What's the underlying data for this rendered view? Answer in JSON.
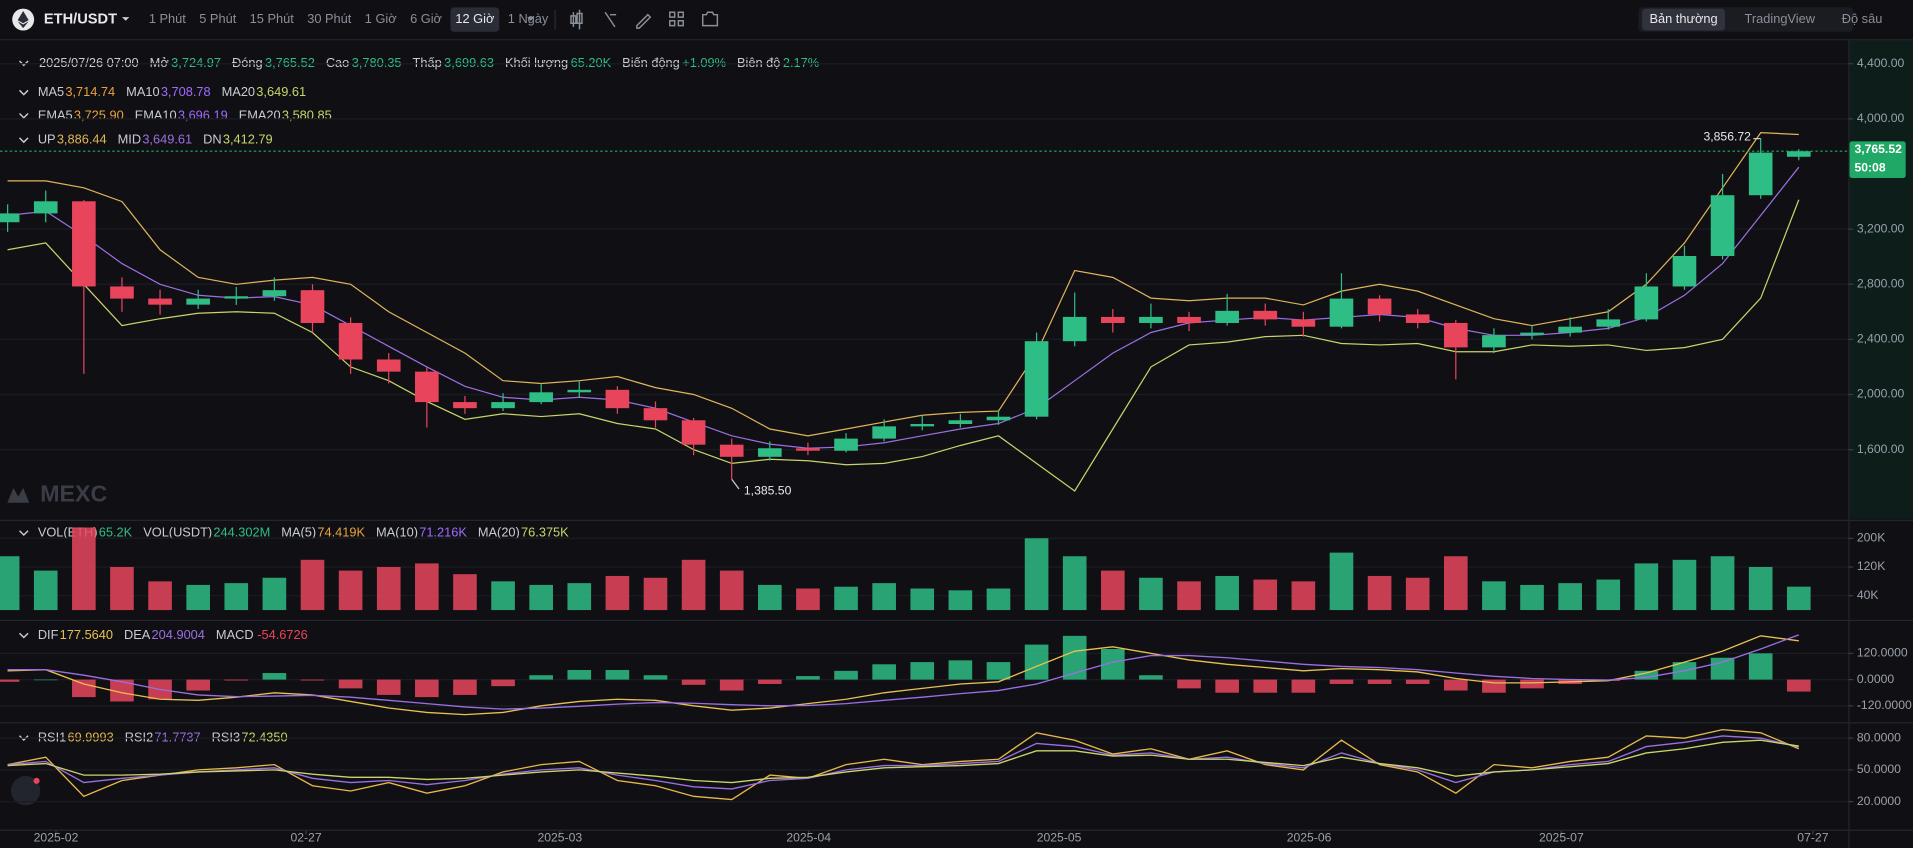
{
  "toolbar": {
    "pair": "ETH/USDT",
    "intervals": [
      "1 Phút",
      "5 Phút",
      "15 Phút",
      "30 Phút",
      "1 Giờ",
      "6 Giờ",
      "12 Giờ",
      "1 Ngày"
    ],
    "active_interval": "12 Giờ",
    "views": [
      "Bản thường",
      "TradingView",
      "Độ sâu"
    ],
    "active_view": "Bản thường"
  },
  "info": {
    "date": "2025/07/26 07:00",
    "value_color": "#2ebd85",
    "fields": [
      {
        "name": "Mở",
        "value": "3,724.97"
      },
      {
        "name": "Đóng",
        "value": "3,765.52"
      },
      {
        "name": "Cao",
        "value": "3,780.35"
      },
      {
        "name": "Thấp",
        "value": "3,699.63"
      },
      {
        "name": "Khối lượng",
        "value": "65.20K"
      },
      {
        "name": "Biến động",
        "value": "+1.09%"
      },
      {
        "name": "Biên độ",
        "value": "2.17%"
      }
    ]
  },
  "legends": {
    "ma": [
      {
        "name": "MA5",
        "value": "3,714.74",
        "color": "#e8a33d"
      },
      {
        "name": "MA10",
        "value": "3,708.78",
        "color": "#a06bff"
      },
      {
        "name": "MA20",
        "value": "3,649.61",
        "color": "#c9d46a"
      }
    ],
    "ema": [
      {
        "name": "EMA5",
        "value": "3,725.90",
        "color": "#e8a33d"
      },
      {
        "name": "EMA10",
        "value": "3,696.19",
        "color": "#a06bff"
      },
      {
        "name": "EMA20",
        "value": "3,580.85",
        "color": "#c9d46a"
      }
    ],
    "vol": [
      {
        "name": "VOL(ETH)",
        "value": "65.2K",
        "color": "#2ebd85"
      },
      {
        "name": "VOL(USDT)",
        "value": "244.302M",
        "color": "#2ebd85"
      },
      {
        "name": "MA(5)",
        "value": "74.419K",
        "color": "#e8a33d"
      },
      {
        "name": "MA(10)",
        "value": "71.216K",
        "color": "#a06bff"
      },
      {
        "name": "MA(20)",
        "value": "76.375K",
        "color": "#c9d46a"
      }
    ]
  },
  "watermark": "MEXC",
  "chart_data": {
    "type": "candlestick",
    "up_color": "#2ebd85",
    "down_color": "#e8455d",
    "grid": true,
    "xlim": [
      -0.2,
      48.3
    ],
    "xticks": [
      {
        "value": 1.27,
        "label": "2025-02"
      },
      {
        "value": 7.83,
        "label": "02-27"
      },
      {
        "value": 14.49,
        "label": "2025-03"
      },
      {
        "value": 21.02,
        "label": "2025-04"
      },
      {
        "value": 27.59,
        "label": "2025-05"
      },
      {
        "value": 34.15,
        "label": "2025-06"
      },
      {
        "value": 40.77,
        "label": "2025-07"
      },
      {
        "value": 47.37,
        "label": "07-27"
      }
    ],
    "main": {
      "ylim": [
        1100,
        4570
      ],
      "yticks": [
        {
          "value": 1600,
          "label": "1,600.00"
        },
        {
          "value": 2000,
          "label": "2,000.00"
        },
        {
          "value": 2400,
          "label": "2,400.00"
        },
        {
          "value": 2800,
          "label": "2,800.00"
        },
        {
          "value": 3200,
          "label": "3,200.00"
        },
        {
          "value": 4000,
          "label": "4,000.00"
        },
        {
          "value": 4400,
          "label": "4,400.00"
        }
      ],
      "candles": [
        [
          3250,
          3380,
          3180,
          3314
        ],
        [
          3314,
          3480,
          3250,
          3402
        ],
        [
          3402,
          3410,
          2150,
          2784
        ],
        [
          2784,
          2850,
          2600,
          2696
        ],
        [
          2696,
          2760,
          2580,
          2652
        ],
        [
          2652,
          2760,
          2620,
          2696
        ],
        [
          2696,
          2780,
          2650,
          2713
        ],
        [
          2713,
          2850,
          2680,
          2757
        ],
        [
          2757,
          2800,
          2450,
          2519
        ],
        [
          2519,
          2560,
          2150,
          2254
        ],
        [
          2254,
          2300,
          2080,
          2166
        ],
        [
          2166,
          2200,
          1760,
          1945
        ],
        [
          1945,
          1990,
          1860,
          1901
        ],
        [
          1901,
          2010,
          1880,
          1945
        ],
        [
          1945,
          2080,
          1930,
          2016
        ],
        [
          2016,
          2100,
          1980,
          2034
        ],
        [
          2034,
          2060,
          1860,
          1901
        ],
        [
          1901,
          1950,
          1760,
          1813
        ],
        [
          1813,
          1830,
          1560,
          1636
        ],
        [
          1636,
          1680,
          1385.5,
          1548
        ],
        [
          1548,
          1660,
          1520,
          1610
        ],
        [
          1610,
          1650,
          1560,
          1592
        ],
        [
          1592,
          1720,
          1580,
          1680
        ],
        [
          1680,
          1820,
          1660,
          1769
        ],
        [
          1769,
          1850,
          1740,
          1786
        ],
        [
          1786,
          1860,
          1760,
          1813
        ],
        [
          1813,
          1880,
          1780,
          1839
        ],
        [
          1839,
          2450,
          1820,
          2387
        ],
        [
          2387,
          2740,
          2350,
          2563
        ],
        [
          2563,
          2620,
          2450,
          2519
        ],
        [
          2519,
          2660,
          2480,
          2563
        ],
        [
          2563,
          2600,
          2460,
          2519
        ],
        [
          2519,
          2730,
          2500,
          2607
        ],
        [
          2607,
          2660,
          2500,
          2545
        ],
        [
          2545,
          2600,
          2420,
          2492
        ],
        [
          2492,
          2880,
          2480,
          2696
        ],
        [
          2696,
          2720,
          2530,
          2581
        ],
        [
          2581,
          2620,
          2480,
          2519
        ],
        [
          2519,
          2540,
          2110,
          2342
        ],
        [
          2342,
          2480,
          2300,
          2431
        ],
        [
          2431,
          2500,
          2400,
          2449
        ],
        [
          2449,
          2560,
          2420,
          2492
        ],
        [
          2492,
          2620,
          2470,
          2545
        ],
        [
          2545,
          2880,
          2530,
          2784
        ],
        [
          2784,
          3080,
          2760,
          3005
        ],
        [
          3005,
          3600,
          2980,
          3446
        ],
        [
          3446,
          3856.72,
          3420,
          3755
        ],
        [
          3724.97,
          3780.35,
          3699.63,
          3765.52
        ]
      ],
      "overlays": [
        {
          "name": "UP",
          "value_label": "3,886.44",
          "color": "#e0b45a",
          "values": [
            3550,
            3550,
            3500,
            3400,
            3050,
            2850,
            2800,
            2830,
            2850,
            2800,
            2600,
            2450,
            2300,
            2100,
            2080,
            2100,
            2130,
            2050,
            2000,
            1900,
            1750,
            1700,
            1750,
            1800,
            1850,
            1870,
            1880,
            2300,
            2900,
            2850,
            2700,
            2680,
            2700,
            2700,
            2650,
            2750,
            2800,
            2750,
            2650,
            2550,
            2500,
            2550,
            2600,
            2800,
            3100,
            3500,
            3900,
            3886.44
          ]
        },
        {
          "name": "MID",
          "value_label": "3,649.61",
          "color": "#9b6fe3",
          "values": [
            3300,
            3330,
            3150,
            2950,
            2800,
            2720,
            2700,
            2710,
            2650,
            2500,
            2350,
            2200,
            2060,
            1980,
            1960,
            1980,
            1960,
            1900,
            1800,
            1700,
            1640,
            1610,
            1620,
            1650,
            1700,
            1750,
            1790,
            1900,
            2100,
            2300,
            2450,
            2520,
            2540,
            2560,
            2540,
            2560,
            2580,
            2560,
            2480,
            2430,
            2430,
            2450,
            2480,
            2560,
            2720,
            2950,
            3300,
            3649.61
          ]
        },
        {
          "name": "DN",
          "value_label": "3,412.79",
          "color": "#c9d46a",
          "values": [
            3050,
            3100,
            2800,
            2500,
            2550,
            2590,
            2600,
            2590,
            2450,
            2200,
            2100,
            1950,
            1820,
            1860,
            1840,
            1860,
            1790,
            1750,
            1600,
            1500,
            1530,
            1520,
            1490,
            1500,
            1550,
            1630,
            1700,
            1500,
            1300,
            1750,
            2200,
            2360,
            2380,
            2420,
            2430,
            2370,
            2360,
            2370,
            2310,
            2310,
            2360,
            2350,
            2360,
            2320,
            2340,
            2400,
            2700,
            3412.79
          ]
        }
      ],
      "annotations": [
        {
          "x": 46,
          "value": 3856.72,
          "label": "3,856.72"
        },
        {
          "x": 19,
          "value": 1385.5,
          "label": "1,385.50"
        }
      ],
      "last_price": {
        "value": 3765.52,
        "label": "3,765.52",
        "countdown": "50:08",
        "color": "#1fa866"
      }
    },
    "volume": {
      "ylim": [
        0,
        238000
      ],
      "yticks": [
        {
          "value": 40000,
          "label": "40K"
        },
        {
          "value": 120000,
          "label": "120K"
        },
        {
          "value": 200000,
          "label": "200K"
        }
      ],
      "values": [
        150000,
        110000,
        230000,
        120000,
        80000,
        70000,
        75000,
        90000,
        140000,
        110000,
        120000,
        130000,
        100000,
        80000,
        70000,
        75000,
        95000,
        90000,
        140000,
        110000,
        70000,
        60000,
        65000,
        75000,
        60000,
        55000,
        60000,
        200000,
        150000,
        110000,
        90000,
        80000,
        95000,
        85000,
        80000,
        160000,
        95000,
        90000,
        150000,
        80000,
        70000,
        75000,
        85000,
        130000,
        140000,
        150000,
        120000,
        65200
      ]
    },
    "macd": {
      "ylim": [
        -184,
        251
      ],
      "yticks": [
        {
          "value": -120,
          "label": "-120.0000"
        },
        {
          "value": 0,
          "label": "0.0000"
        },
        {
          "value": 120,
          "label": "120.0000"
        }
      ],
      "series": [
        {
          "name": "DIF",
          "value_label": "177.5640",
          "color": "#e8c050",
          "values": [
            40,
            45,
            -20,
            -60,
            -90,
            -95,
            -80,
            -60,
            -70,
            -100,
            -130,
            -150,
            -160,
            -150,
            -120,
            -100,
            -90,
            -95,
            -120,
            -140,
            -130,
            -110,
            -90,
            -60,
            -40,
            -20,
            -10,
            60,
            130,
            150,
            120,
            90,
            70,
            55,
            40,
            50,
            45,
            35,
            5,
            -15,
            -15,
            -10,
            -5,
            30,
            80,
            130,
            200,
            177.564
          ]
        },
        {
          "name": "DEA",
          "value_label": "204.9004",
          "color": "#9b6fe3",
          "values": [
            45,
            45,
            20,
            -10,
            -45,
            -70,
            -78,
            -75,
            -72,
            -80,
            -95,
            -110,
            -125,
            -135,
            -130,
            -122,
            -112,
            -105,
            -108,
            -115,
            -120,
            -118,
            -110,
            -95,
            -80,
            -64,
            -50,
            -20,
            30,
            80,
            110,
            110,
            100,
            85,
            70,
            60,
            55,
            45,
            30,
            15,
            5,
            0,
            -2,
            10,
            40,
            80,
            140,
            204.9004
          ]
        }
      ],
      "histogram": {
        "name": "MACD",
        "value_label": "-54.6726",
        "color": "#e8455d",
        "values": [
          -10,
          0,
          -80,
          -100,
          -90,
          -50,
          -4,
          30,
          -4,
          -40,
          -70,
          -80,
          -70,
          -30,
          20,
          44,
          44,
          20,
          -24,
          -50,
          -20,
          16,
          40,
          70,
          80,
          88,
          80,
          160,
          200,
          140,
          20,
          -40,
          -60,
          -60,
          -60,
          -20,
          -20,
          -20,
          -50,
          -60,
          -40,
          -20,
          -6,
          40,
          80,
          100,
          120,
          -54.6726
        ]
      }
    },
    "rsi": {
      "ylim": [
        -6.5,
        89.2
      ],
      "yticks": [
        {
          "value": 20,
          "label": "20.0000"
        },
        {
          "value": 50,
          "label": "50.0000"
        },
        {
          "value": 80,
          "label": "80.0000"
        }
      ],
      "series": [
        {
          "name": "RSI1",
          "value_label": "69.9993",
          "color": "#e8b84a",
          "values": [
            55,
            62,
            25,
            40,
            45,
            50,
            52,
            55,
            35,
            30,
            38,
            28,
            35,
            48,
            55,
            58,
            40,
            35,
            25,
            22,
            45,
            42,
            55,
            60,
            55,
            58,
            60,
            85,
            78,
            65,
            70,
            60,
            68,
            55,
            50,
            78,
            55,
            48,
            28,
            55,
            52,
            58,
            62,
            82,
            80,
            88,
            85,
            69.9993
          ]
        },
        {
          "name": "RSI2",
          "value_label": "71.7737",
          "color": "#9b6fe3",
          "values": [
            55,
            58,
            38,
            42,
            45,
            48,
            50,
            52,
            42,
            38,
            40,
            36,
            40,
            46,
            50,
            52,
            45,
            40,
            34,
            32,
            40,
            42,
            50,
            54,
            54,
            56,
            58,
            75,
            72,
            64,
            66,
            60,
            62,
            56,
            52,
            66,
            56,
            50,
            38,
            48,
            50,
            55,
            58,
            72,
            76,
            82,
            80,
            71.7737
          ]
        },
        {
          "name": "RSI3",
          "value_label": "72.4350",
          "color": "#c9d46a",
          "values": [
            54,
            56,
            45,
            45,
            46,
            48,
            49,
            50,
            46,
            43,
            43,
            41,
            42,
            45,
            48,
            50,
            47,
            44,
            40,
            38,
            42,
            43,
            48,
            52,
            53,
            54,
            56,
            68,
            68,
            63,
            64,
            60,
            60,
            57,
            54,
            62,
            56,
            52,
            44,
            48,
            50,
            53,
            56,
            66,
            70,
            76,
            78,
            72.435
          ]
        }
      ]
    }
  }
}
